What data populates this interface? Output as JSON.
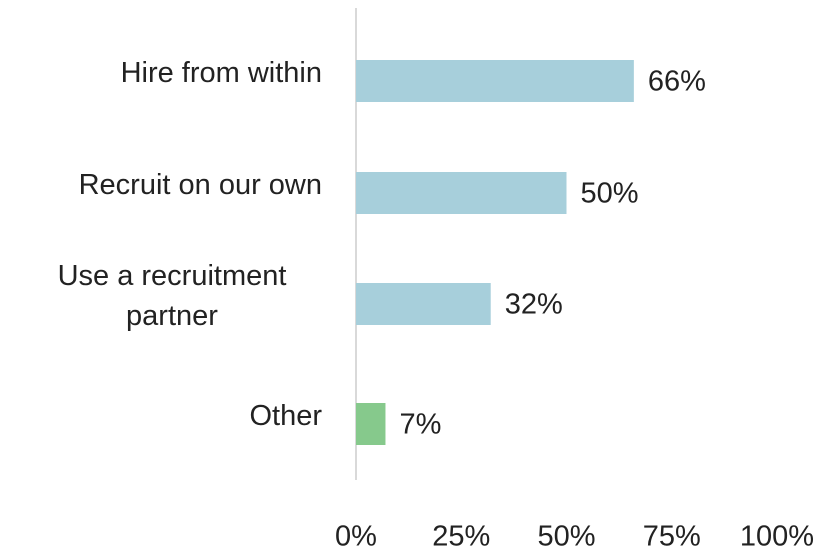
{
  "chart_data": {
    "type": "bar",
    "orientation": "horizontal",
    "categories": [
      "Hire from within",
      "Recruit on our own",
      "Use a recruitment partner",
      "Other"
    ],
    "values": [
      66,
      50,
      32,
      7
    ],
    "value_labels": [
      "66%",
      "50%",
      "32%",
      "7%"
    ],
    "colors": [
      "#a7cfdb",
      "#a7cfdb",
      "#a7cfdb",
      "#86c98c"
    ],
    "xlim": [
      0,
      100
    ],
    "xticks": [
      {
        "value": 0,
        "label": "0%"
      },
      {
        "value": 25,
        "label": "25%"
      },
      {
        "value": 50,
        "label": "50%"
      },
      {
        "value": 75,
        "label": "75%"
      },
      {
        "value": 100,
        "label": "100%"
      }
    ],
    "grid": false
  }
}
